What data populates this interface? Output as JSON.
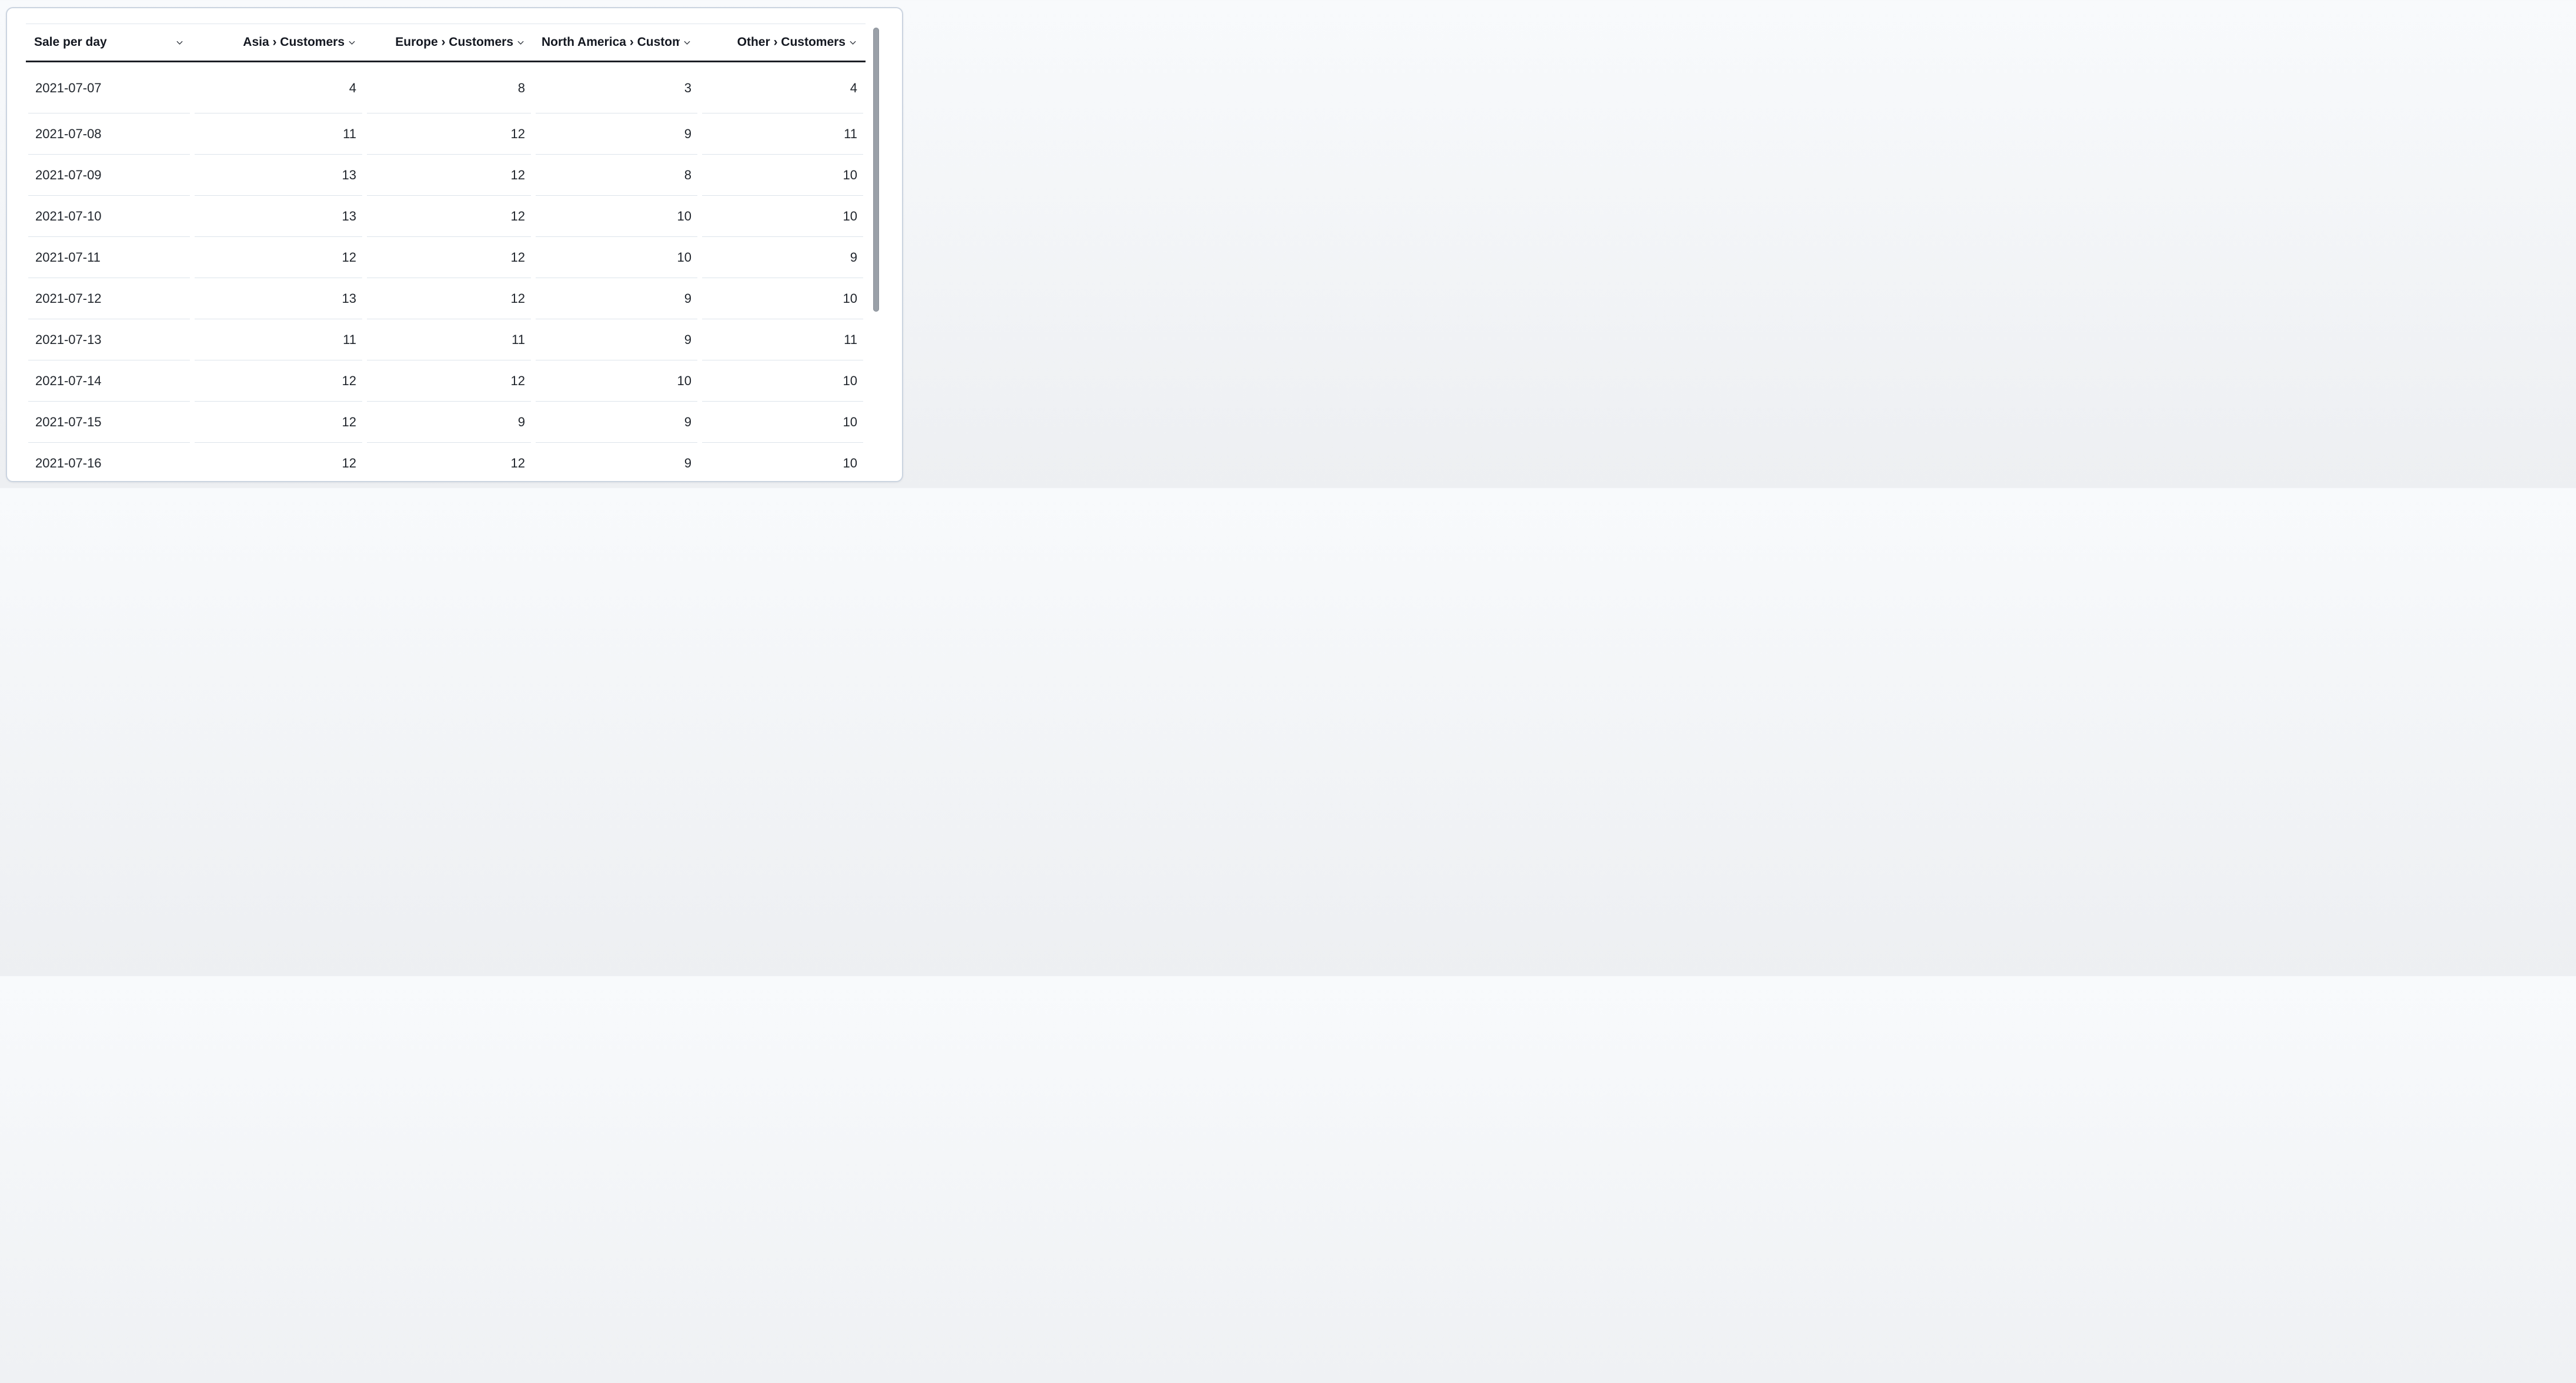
{
  "chart_data": {
    "type": "table",
    "columns": [
      "Sale per day",
      "Asia › Customers",
      "Europe › Customers",
      "North America › Customers",
      "Other › Customers"
    ],
    "rows": [
      [
        "2021-07-07",
        4,
        8,
        3,
        4
      ],
      [
        "2021-07-08",
        11,
        12,
        9,
        11
      ],
      [
        "2021-07-09",
        13,
        12,
        8,
        10
      ],
      [
        "2021-07-10",
        13,
        12,
        10,
        10
      ],
      [
        "2021-07-11",
        12,
        12,
        10,
        9
      ],
      [
        "2021-07-12",
        13,
        12,
        9,
        10
      ],
      [
        "2021-07-13",
        11,
        11,
        9,
        11
      ],
      [
        "2021-07-14",
        12,
        12,
        10,
        10
      ],
      [
        "2021-07-15",
        12,
        9,
        9,
        10
      ],
      [
        "2021-07-16",
        12,
        12,
        9,
        10
      ]
    ],
    "layout_hints": {
      "first_column_align": "left",
      "value_columns_align": "right",
      "header_sort_icons": true,
      "last_row_clipped": true
    }
  },
  "icons": {
    "header_sort": "chevron-down"
  },
  "colors": {
    "page_bg_top": "#f8fafc",
    "page_bg_bottom": "#edeff2",
    "card_bg": "#ffffff",
    "card_border": "#cbd4e0",
    "header_text": "#141821",
    "cell_text": "#1f242b",
    "header_rule_dark": "#1c1f25",
    "table_top_rule": "#dfe5ec",
    "row_divider": "#dde4eb",
    "scrollbar_thumb": "#9aa0a8"
  }
}
